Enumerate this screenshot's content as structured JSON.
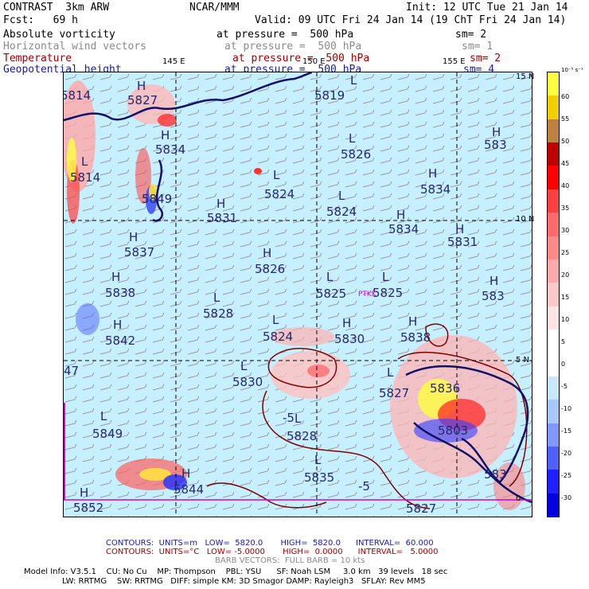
{
  "header": {
    "model": "CONTRAST  3km ARW",
    "center": "NCAR/MMM",
    "init": "Init: 12 UTC Tue 21 Jan 14",
    "fcst": "Fcst:   69 h",
    "valid": "Valid: 09 UTC Fri 24 Jan 14 (19 ChT Fri 24 Jan 14)"
  },
  "fields": [
    {
      "name": "Absolute vorticity",
      "level": "at pressure =  500 hPa",
      "smooth": "sm= 2",
      "color": "#000000"
    },
    {
      "name": "Horizontal wind vectors",
      "level": "at pressure =  500 hPa",
      "smooth": "sm= 1",
      "color": "#8a8a8a"
    },
    {
      "name": "Temperature",
      "level": "at pressure =  500 hPa",
      "smooth": "sm= 2",
      "color": "#a00000"
    },
    {
      "name": "Geopotential height",
      "level": "at pressure =  500 hPa",
      "smooth": "sm= 4",
      "color": "#1a1aa0"
    }
  ],
  "map": {
    "lon_labels": [
      "145 E",
      "150 E",
      "155 E"
    ],
    "lat_labels": [
      "15 N",
      "10 N",
      "5 N",
      "0"
    ],
    "station": "PTKK",
    "height_labels": [
      {
        "t": "H",
        "x": 92,
        "y": 10
      },
      {
        "t": "5814",
        "x": -4,
        "y": 22
      },
      {
        "t": "5827",
        "x": 80,
        "y": 28
      },
      {
        "t": "H",
        "x": 122,
        "y": 72
      },
      {
        "t": "5834",
        "x": 115,
        "y": 90
      },
      {
        "t": "L",
        "x": 360,
        "y": 3
      },
      {
        "t": "5819",
        "x": 315,
        "y": 22
      },
      {
        "t": "L",
        "x": 358,
        "y": 76
      },
      {
        "t": "5826",
        "x": 348,
        "y": 96
      },
      {
        "t": "H",
        "x": 538,
        "y": 68
      },
      {
        "t": "583",
        "x": 528,
        "y": 84
      },
      {
        "t": "L",
        "x": 22,
        "y": 105
      },
      {
        "t": "5814",
        "x": 8,
        "y": 125
      },
      {
        "t": "L",
        "x": 263,
        "y": 122
      },
      {
        "t": "5824",
        "x": 252,
        "y": 146
      },
      {
        "t": "H",
        "x": 458,
        "y": 120
      },
      {
        "t": "5834",
        "x": 448,
        "y": 140
      },
      {
        "t": "5849",
        "x": 98,
        "y": 152
      },
      {
        "t": "H",
        "x": 192,
        "y": 158
      },
      {
        "t": "5831",
        "x": 180,
        "y": 176
      },
      {
        "t": "L",
        "x": 345,
        "y": 148
      },
      {
        "t": "5824",
        "x": 330,
        "y": 168
      },
      {
        "t": "H",
        "x": 418,
        "y": 172
      },
      {
        "t": "5834",
        "x": 408,
        "y": 190
      },
      {
        "t": "H",
        "x": 492,
        "y": 190
      },
      {
        "t": "5831",
        "x": 482,
        "y": 206
      },
      {
        "t": "H",
        "x": 82,
        "y": 200
      },
      {
        "t": "5837",
        "x": 76,
        "y": 219
      },
      {
        "t": "H",
        "x": 250,
        "y": 220
      },
      {
        "t": "5826",
        "x": 240,
        "y": 240
      },
      {
        "t": "H",
        "x": 60,
        "y": 250
      },
      {
        "t": "5838",
        "x": 52,
        "y": 270
      },
      {
        "t": "L",
        "x": 330,
        "y": 250
      },
      {
        "t": "5825",
        "x": 317,
        "y": 271
      },
      {
        "t": "L",
        "x": 400,
        "y": 250
      },
      {
        "t": "5825",
        "x": 388,
        "y": 270
      },
      {
        "t": "H",
        "x": 535,
        "y": 255
      },
      {
        "t": "583",
        "x": 525,
        "y": 274
      },
      {
        "t": "L",
        "x": 188,
        "y": 276
      },
      {
        "t": "5828",
        "x": 175,
        "y": 296
      },
      {
        "t": "H",
        "x": 62,
        "y": 310
      },
      {
        "t": "5842",
        "x": 52,
        "y": 330
      },
      {
        "t": "L",
        "x": 262,
        "y": 304
      },
      {
        "t": "5824",
        "x": 250,
        "y": 325
      },
      {
        "t": "H",
        "x": 350,
        "y": 308
      },
      {
        "t": "5830",
        "x": 340,
        "y": 328
      },
      {
        "t": "H",
        "x": 433,
        "y": 306
      },
      {
        "t": "5838",
        "x": 423,
        "y": 326
      },
      {
        "t": "47",
        "x": 0,
        "y": 368
      },
      {
        "t": "L",
        "x": 222,
        "y": 362
      },
      {
        "t": "5830",
        "x": 212,
        "y": 382
      },
      {
        "t": "L",
        "x": 406,
        "y": 370
      },
      {
        "t": "5827",
        "x": 396,
        "y": 396
      },
      {
        "t": "5836",
        "x": 460,
        "y": 390
      },
      {
        "t": "-5",
        "x": 275,
        "y": 427
      },
      {
        "t": "L",
        "x": 290,
        "y": 428
      },
      {
        "t": "5828",
        "x": 280,
        "y": 450
      },
      {
        "t": "L",
        "x": 46,
        "y": 425
      },
      {
        "t": "5849",
        "x": 36,
        "y": 447
      },
      {
        "t": "5803",
        "x": 470,
        "y": 443
      },
      {
        "t": "L",
        "x": 315,
        "y": 480
      },
      {
        "t": "5835",
        "x": 302,
        "y": 502
      },
      {
        "t": "-5",
        "x": 370,
        "y": 513
      },
      {
        "t": "H",
        "x": 148,
        "y": 497
      },
      {
        "t": "5844",
        "x": 138,
        "y": 517
      },
      {
        "t": "583",
        "x": 528,
        "y": 498
      },
      {
        "t": "H",
        "x": 20,
        "y": 521
      },
      {
        "t": "5852",
        "x": 12,
        "y": 540
      },
      {
        "t": "5827",
        "x": 430,
        "y": 541
      }
    ]
  },
  "colorbar": {
    "unit": "10⁻⁵ s⁻¹",
    "labels": [
      "60",
      "55",
      "50",
      "45",
      "40",
      "35",
      "30",
      "25",
      "20",
      "15",
      "10",
      "5",
      "0",
      "-5",
      "-10",
      "-15",
      "-20",
      "-25",
      "-30"
    ],
    "colors": [
      "#ffff40",
      "#f0d000",
      "#c08040",
      "#c00000",
      "#ff0000",
      "#ff4040",
      "#ff6a6a",
      "#ff8a8a",
      "#ffaaaa",
      "#ffc8c8",
      "#ffe4e4",
      "#ffffff",
      "#ffffff",
      "#c8e8ff",
      "#a8c8ff",
      "#8098ff",
      "#5060ff",
      "#2020ff",
      "#0000e0"
    ]
  },
  "footer": {
    "contours1": "CONTOURS:  UNITS=m   LOW=  5820.0       HIGH=  5820.0      INTERVAL=  60.000",
    "contours2": "CONTOURS:  UNITS=°C   LOW= -5.0000       HIGH=  0.0000      INTERVAL=   5.0000",
    "barbs": "BARB VECTORS:  FULL BARB = 10 kts",
    "model1": "Model Info: V3.5.1    CU: No Cu    MP: Thompson    PBL: YSU      SF: Noah LSM     3.0 km   39 levels   18 sec",
    "model2": "LW: RRTMG    SW: RRTMG   DIFF: simple KM: 3D Smagor DAMP: Rayleigh3   SFLAY: Rev MM5"
  }
}
